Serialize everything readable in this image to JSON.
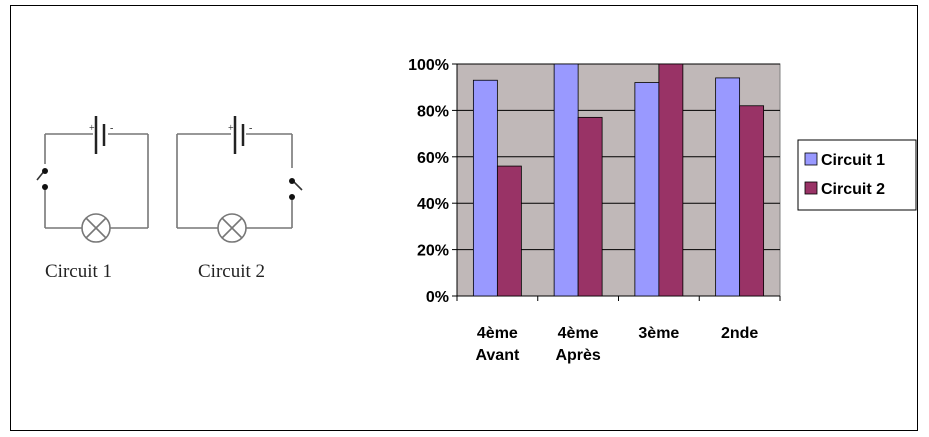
{
  "circuits": {
    "label_1": "Circuit 1",
    "label_2": "Circuit 2",
    "battery_plus": "+",
    "battery_minus": "-"
  },
  "chart_data": {
    "type": "bar",
    "categories": [
      [
        "4ème",
        "Avant"
      ],
      [
        "4ème",
        "Après"
      ],
      [
        "3ème"
      ],
      [
        "2nde"
      ]
    ],
    "series": [
      {
        "name": "Circuit 1",
        "values": [
          93,
          100,
          92,
          94
        ],
        "color": "#9999ff"
      },
      {
        "name": "Circuit 2",
        "values": [
          56,
          77,
          100,
          82
        ],
        "color": "#993366"
      }
    ],
    "ylim": [
      0,
      100
    ],
    "yticks": [
      "0%",
      "20%",
      "40%",
      "60%",
      "80%",
      "100%"
    ],
    "ytick_values": [
      0,
      20,
      40,
      60,
      80,
      100
    ],
    "plot_background": "#c0b8b8",
    "grid": true,
    "legend": "right",
    "title": "",
    "xlabel": "",
    "ylabel": ""
  }
}
